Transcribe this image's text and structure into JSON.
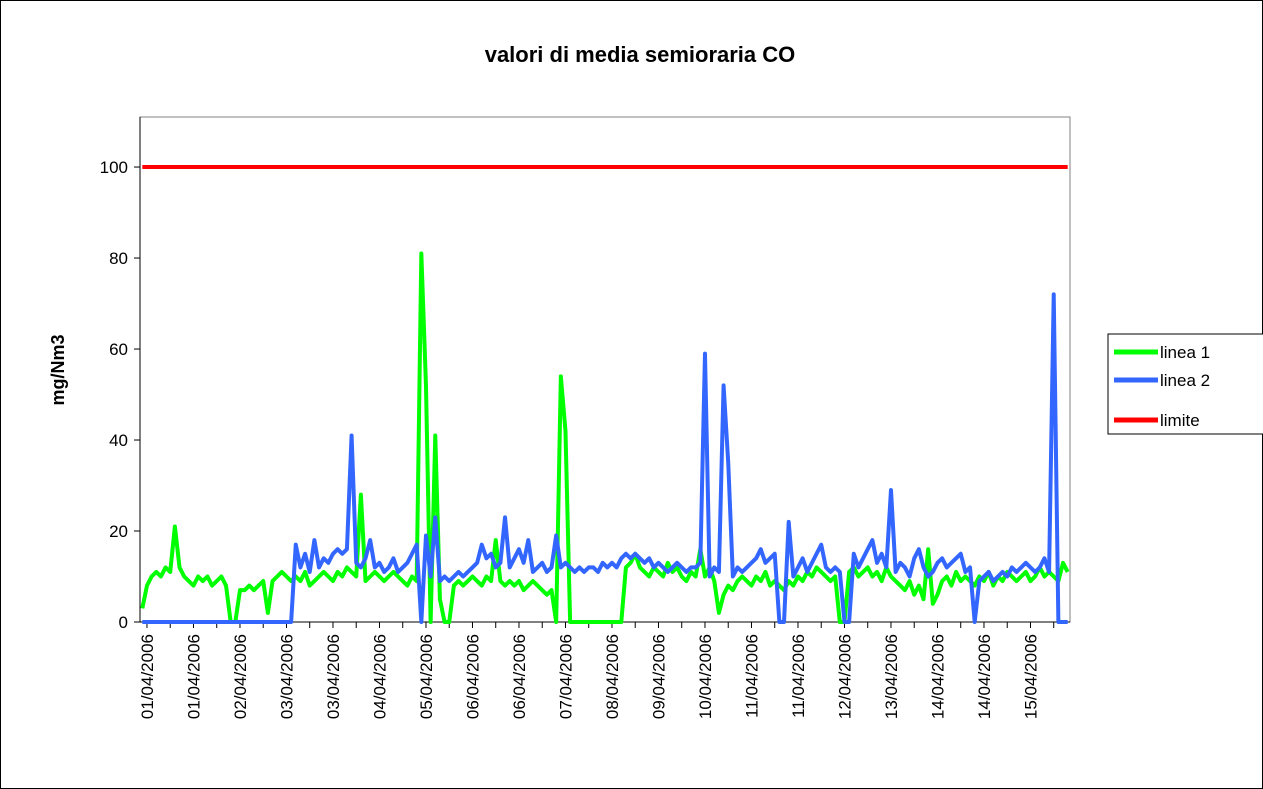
{
  "chart_data": {
    "type": "line",
    "title": "valori di media semioraria CO",
    "y_label": "mg/Nm3",
    "categories": [
      null,
      "01/04/2006",
      null,
      null,
      null,
      null,
      null,
      null,
      null,
      null,
      null,
      "01/04/2006",
      null,
      null,
      null,
      null,
      null,
      null,
      null,
      null,
      null,
      "02/04/2006",
      null,
      null,
      null,
      null,
      null,
      null,
      null,
      null,
      null,
      "03/04/2006",
      null,
      null,
      null,
      null,
      null,
      null,
      null,
      null,
      null,
      "03/04/2006",
      null,
      null,
      null,
      null,
      null,
      null,
      null,
      null,
      null,
      "04/04/2006",
      null,
      null,
      null,
      null,
      null,
      null,
      null,
      null,
      null,
      "05/04/2006",
      null,
      null,
      null,
      null,
      null,
      null,
      null,
      null,
      null,
      "06/04/2006",
      null,
      null,
      null,
      null,
      null,
      null,
      null,
      null,
      null,
      "06/04/2006",
      null,
      null,
      null,
      null,
      null,
      null,
      null,
      null,
      null,
      "07/04/2006",
      null,
      null,
      null,
      null,
      null,
      null,
      null,
      null,
      null,
      "08/04/2006",
      null,
      null,
      null,
      null,
      null,
      null,
      null,
      null,
      null,
      "09/04/2006",
      null,
      null,
      null,
      null,
      null,
      null,
      null,
      null,
      null,
      "10/04/2006",
      null,
      null,
      null,
      null,
      null,
      null,
      null,
      null,
      null,
      "11/04/2006",
      null,
      null,
      null,
      null,
      null,
      null,
      null,
      null,
      null,
      "11/04/2006",
      null,
      null,
      null,
      null,
      null,
      null,
      null,
      null,
      null,
      "12/04/2006",
      null,
      null,
      null,
      null,
      null,
      null,
      null,
      null,
      null,
      "13/04/2006",
      null,
      null,
      null,
      null,
      null,
      null,
      null,
      null,
      null,
      "14/04/2006",
      null,
      null,
      null,
      null,
      null,
      null,
      null,
      null,
      null,
      "14/04/2006",
      null,
      null,
      null,
      null,
      null,
      null,
      null,
      null,
      null,
      "15/04/2006",
      null,
      null,
      null,
      null,
      null,
      null,
      null,
      null
    ],
    "series": [
      {
        "name": "linea 1",
        "color": "#00ff00",
        "values": [
          3,
          8,
          10,
          11,
          10,
          12,
          11,
          21,
          12,
          10,
          9,
          8,
          10,
          9,
          10,
          8,
          9,
          10,
          8,
          0,
          0,
          7,
          7,
          8,
          7,
          8,
          9,
          2,
          9,
          10,
          11,
          10,
          9,
          10,
          9,
          11,
          8,
          9,
          10,
          11,
          10,
          9,
          11,
          10,
          12,
          11,
          10,
          28,
          9,
          10,
          11,
          10,
          9,
          10,
          11,
          10,
          9,
          8,
          10,
          9,
          81,
          52,
          0,
          41,
          5,
          0,
          0,
          8,
          9,
          8,
          9,
          10,
          9,
          8,
          10,
          9,
          18,
          9,
          8,
          9,
          8,
          9,
          7,
          8,
          9,
          8,
          7,
          6,
          7,
          0,
          54,
          42,
          0,
          0,
          0,
          0,
          0,
          0,
          0,
          0,
          0,
          0,
          0,
          0,
          12,
          13,
          15,
          12,
          11,
          10,
          12,
          11,
          10,
          13,
          11,
          12,
          10,
          9,
          11,
          10,
          16,
          10,
          12,
          9,
          2,
          6,
          8,
          7,
          9,
          10,
          9,
          8,
          10,
          9,
          11,
          8,
          9,
          8,
          7,
          9,
          8,
          10,
          9,
          11,
          10,
          12,
          11,
          10,
          9,
          10,
          0,
          0,
          11,
          12,
          10,
          11,
          12,
          10,
          11,
          9,
          12,
          10,
          9,
          8,
          7,
          9,
          6,
          8,
          5,
          16,
          4,
          6,
          9,
          10,
          8,
          11,
          9,
          10,
          9,
          8,
          10,
          9,
          11,
          8,
          10,
          9,
          11,
          10,
          9,
          10,
          11,
          9,
          10,
          12,
          10,
          11,
          10,
          9,
          13,
          11
        ]
      },
      {
        "name": "linea 2",
        "color": "#3366ff",
        "values": [
          0,
          0,
          0,
          0,
          0,
          0,
          0,
          0,
          0,
          0,
          0,
          0,
          0,
          0,
          0,
          0,
          0,
          0,
          0,
          0,
          0,
          0,
          0,
          0,
          0,
          0,
          0,
          0,
          0,
          0,
          0,
          0,
          0,
          17,
          12,
          15,
          11,
          18,
          12,
          14,
          13,
          15,
          16,
          15,
          16,
          41,
          13,
          12,
          14,
          18,
          12,
          13,
          11,
          12,
          14,
          11,
          12,
          13,
          15,
          17,
          0,
          19,
          10,
          23,
          9,
          10,
          9,
          10,
          11,
          10,
          11,
          12,
          13,
          17,
          14,
          15,
          12,
          13,
          23,
          12,
          14,
          16,
          13,
          18,
          11,
          12,
          13,
          11,
          12,
          19,
          12,
          13,
          12,
          11,
          12,
          11,
          12,
          12,
          11,
          13,
          12,
          13,
          12,
          14,
          15,
          14,
          15,
          14,
          13,
          14,
          12,
          13,
          12,
          11,
          12,
          13,
          12,
          11,
          12,
          12,
          13,
          59,
          10,
          12,
          11,
          52,
          35,
          10,
          12,
          11,
          12,
          13,
          14,
          16,
          13,
          14,
          15,
          0,
          0,
          22,
          10,
          12,
          14,
          11,
          13,
          15,
          17,
          12,
          11,
          12,
          11,
          0,
          0,
          15,
          12,
          14,
          16,
          18,
          13,
          15,
          12,
          29,
          11,
          13,
          12,
          10,
          14,
          16,
          12,
          10,
          11,
          13,
          14,
          12,
          13,
          14,
          15,
          11,
          12,
          0,
          9,
          10,
          11,
          9,
          10,
          11,
          10,
          12,
          11,
          12,
          13,
          12,
          11,
          12,
          14,
          11,
          72,
          0,
          0,
          0
        ]
      },
      {
        "name": "limite",
        "color": "#ff0000",
        "values": [
          100,
          100,
          100,
          100,
          100,
          100,
          100,
          100,
          100,
          100,
          100,
          100,
          100,
          100,
          100,
          100,
          100,
          100,
          100,
          100,
          100,
          100,
          100,
          100,
          100,
          100,
          100,
          100,
          100,
          100,
          100,
          100,
          100,
          100,
          100,
          100,
          100,
          100,
          100,
          100,
          100,
          100,
          100,
          100,
          100,
          100,
          100,
          100,
          100,
          100,
          100,
          100,
          100,
          100,
          100,
          100,
          100,
          100,
          100,
          100,
          100,
          100,
          100,
          100,
          100,
          100,
          100,
          100,
          100,
          100,
          100,
          100,
          100,
          100,
          100,
          100,
          100,
          100,
          100,
          100,
          100,
          100,
          100,
          100,
          100,
          100,
          100,
          100,
          100,
          100,
          100,
          100,
          100,
          100,
          100,
          100,
          100,
          100,
          100,
          100,
          100,
          100,
          100,
          100,
          100,
          100,
          100,
          100,
          100,
          100,
          100,
          100,
          100,
          100,
          100,
          100,
          100,
          100,
          100,
          100,
          100,
          100,
          100,
          100,
          100,
          100,
          100,
          100,
          100,
          100,
          100,
          100,
          100,
          100,
          100,
          100,
          100,
          100,
          100,
          100,
          100,
          100,
          100,
          100,
          100,
          100,
          100,
          100,
          100,
          100,
          100,
          100,
          100,
          100,
          100,
          100,
          100,
          100,
          100,
          100,
          100,
          100,
          100,
          100,
          100,
          100,
          100,
          100,
          100,
          100,
          100,
          100,
          100,
          100,
          100,
          100,
          100,
          100,
          100,
          100,
          100,
          100,
          100,
          100,
          100,
          100,
          100,
          100,
          100,
          100,
          100,
          100,
          100,
          100,
          100,
          100,
          100,
          100,
          100,
          100
        ]
      }
    ],
    "ylim": [
      0,
      111
    ],
    "yticks": [
      0,
      20,
      40,
      60,
      80,
      100
    ],
    "grid": false,
    "legend": "right"
  }
}
